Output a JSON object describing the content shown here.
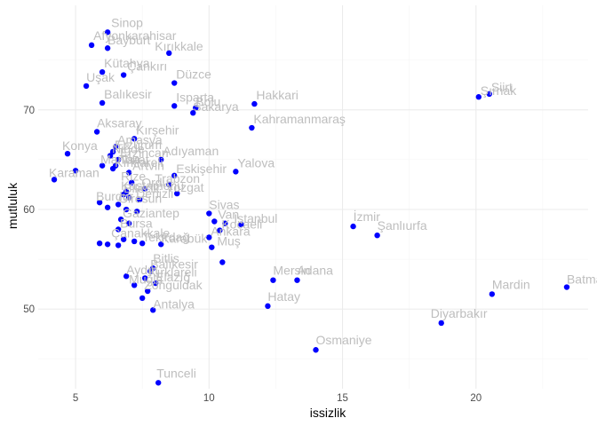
{
  "chart_data": {
    "type": "scatter",
    "title": "",
    "xlabel": "issizlik",
    "ylabel": "mutluluk",
    "xlim": [
      3.6,
      24.2
    ],
    "ylim": [
      42.0,
      80.5
    ],
    "x_ticks": [
      5,
      10,
      15,
      20
    ],
    "y_ticks": [
      50,
      60,
      70
    ],
    "x_minor": [
      7.5,
      12.5,
      17.5,
      22.5
    ],
    "y_minor": [
      45,
      55,
      65,
      75
    ],
    "grid": true,
    "legend": "none",
    "colors": {
      "point": "#0000ff",
      "label": "#bebebe",
      "grid": "#ebebeb"
    },
    "points": [
      {
        "label": "Sinop",
        "x": 6.2,
        "y": 77.8
      },
      {
        "label": "Afyonkarahisar",
        "x": 5.6,
        "y": 76.5
      },
      {
        "label": "Bayburt",
        "x": 6.2,
        "y": 76.2
      },
      {
        "label": "Kırıkkale",
        "x": 8.5,
        "y": 75.7
      },
      {
        "label": "Kütahya",
        "x": 6.0,
        "y": 73.8
      },
      {
        "label": "Çankırı",
        "x": 6.8,
        "y": 73.5
      },
      {
        "label": "Uşak",
        "x": 5.4,
        "y": 72.4
      },
      {
        "label": "Düzce",
        "x": 8.7,
        "y": 72.7
      },
      {
        "label": "Balıkesir",
        "x": 6.0,
        "y": 70.7
      },
      {
        "label": "Isparta",
        "x": 8.7,
        "y": 70.4
      },
      {
        "label": "Bolu",
        "x": 9.5,
        "y": 70.2
      },
      {
        "label": "Sakarya",
        "x": 9.4,
        "y": 69.7
      },
      {
        "label": "Hakkari",
        "x": 11.7,
        "y": 70.6
      },
      {
        "label": "Siirt",
        "x": 20.5,
        "y": 71.6
      },
      {
        "label": "Şırnak",
        "x": 20.1,
        "y": 71.3
      },
      {
        "label": "Kahramanmaraş",
        "x": 11.6,
        "y": 68.2
      },
      {
        "label": "Aksaray",
        "x": 5.8,
        "y": 67.8
      },
      {
        "label": "Kırşehir",
        "x": 7.2,
        "y": 67.1
      },
      {
        "label": "Amasya",
        "x": 6.5,
        "y": 66.3
      },
      {
        "label": "Erzurum",
        "x": 6.4,
        "y": 65.8
      },
      {
        "label": "Konya",
        "x": 4.7,
        "y": 65.6
      },
      {
        "label": "Niğde",
        "x": 6.3,
        "y": 65.4
      },
      {
        "label": "Erzincan",
        "x": 6.6,
        "y": 65.0
      },
      {
        "label": "Adıyaman",
        "x": 8.2,
        "y": 65.0
      },
      {
        "label": "Manisa",
        "x": 6.0,
        "y": 64.4
      },
      {
        "label": "Tokat",
        "x": 6.5,
        "y": 64.4
      },
      {
        "label": "Kırklareli",
        "x": 6.4,
        "y": 64.1
      },
      {
        "label": "Karaman",
        "x": 5.0,
        "y": 63.9
      },
      {
        "label": "Artvin",
        "x": 7.0,
        "y": 63.7
      },
      {
        "label": "Eskişehir",
        "x": 8.7,
        "y": 63.4
      },
      {
        "label": "Yalova",
        "x": 11.0,
        "y": 63.8
      },
      {
        "label": "Karaman2",
        "x": 4.2,
        "y": 63.0
      },
      {
        "label": "Rize",
        "x": 7.1,
        "y": 62.7
      },
      {
        "label": "Ordu",
        "x": 7.6,
        "y": 62.1
      },
      {
        "label": "Trabzon",
        "x": 8.5,
        "y": 62.5
      },
      {
        "label": "Kastamonu",
        "x": 6.9,
        "y": 61.8
      },
      {
        "label": "Yozgat",
        "x": 8.8,
        "y": 61.6
      },
      {
        "label": "Bilecik",
        "x": 6.8,
        "y": 61.5
      },
      {
        "label": "Sivas",
        "x": 7.0,
        "y": 61.2
      },
      {
        "label": "Denizli",
        "x": 7.4,
        "y": 61.0
      },
      {
        "label": "Burdur",
        "x": 5.9,
        "y": 60.7
      },
      {
        "label": "Giresun",
        "x": 6.6,
        "y": 60.5
      },
      {
        "label": "Çorum",
        "x": 6.2,
        "y": 60.2
      },
      {
        "label": "Karabük2",
        "x": 6.9,
        "y": 60.0
      },
      {
        "label": "Edirne",
        "x": 7.3,
        "y": 59.8
      },
      {
        "label": "Sivas2",
        "x": 10.0,
        "y": 59.6
      },
      {
        "label": "Van",
        "x": 10.2,
        "y": 58.8
      },
      {
        "label": "İstanbul",
        "x": 11.2,
        "y": 58.5
      },
      {
        "label": "Mersin2",
        "x": 10.6,
        "y": 58.6
      },
      {
        "label": "Gaziantep",
        "x": 6.7,
        "y": 59.0
      },
      {
        "label": "Antep2",
        "x": 7.0,
        "y": 58.6
      },
      {
        "label": "Bursa",
        "x": 6.6,
        "y": 58.0
      },
      {
        "label": "Kocaeli",
        "x": 10.4,
        "y": 57.9
      },
      {
        "label": "İzmir",
        "x": 15.4,
        "y": 58.3
      },
      {
        "label": "Şanlıurfa",
        "x": 16.3,
        "y": 57.4
      },
      {
        "label": "Ankara",
        "x": 10.0,
        "y": 57.2
      },
      {
        "label": "Çanakkale",
        "x": 6.8,
        "y": 57.0
      },
      {
        "label": "Kırıkkale2",
        "x": 7.2,
        "y": 56.8
      },
      {
        "label": "Tekirdağ",
        "x": 7.5,
        "y": 56.6
      },
      {
        "label": "Karabük",
        "x": 8.2,
        "y": 56.5
      },
      {
        "label": "Malatya",
        "x": 6.2,
        "y": 56.5
      },
      {
        "label": "Bartın",
        "x": 5.9,
        "y": 56.6
      },
      {
        "label": "Nevşehir",
        "x": 6.6,
        "y": 56.4
      },
      {
        "label": "Muş",
        "x": 10.1,
        "y": 56.2
      },
      {
        "label": "Osmaniye2",
        "x": 10.5,
        "y": 54.7
      },
      {
        "label": "Bitlis",
        "x": 7.9,
        "y": 54.1
      },
      {
        "label": "Balıkesir2",
        "x": 7.8,
        "y": 53.8
      },
      {
        "label": "Aydın",
        "x": 6.9,
        "y": 53.3
      },
      {
        "label": "Kırklareli2",
        "x": 7.6,
        "y": 53.1
      },
      {
        "label": "Mersin",
        "x": 12.4,
        "y": 52.9
      },
      {
        "label": "Adana",
        "x": 13.3,
        "y": 52.9
      },
      {
        "label": "Elazığ",
        "x": 8.0,
        "y": 52.6
      },
      {
        "label": "Muğla",
        "x": 7.2,
        "y": 52.4
      },
      {
        "label": "Zonguldak",
        "x": 7.7,
        "y": 51.8
      },
      {
        "label": "Mardin",
        "x": 20.6,
        "y": 51.5
      },
      {
        "label": "Batman",
        "x": 23.4,
        "y": 52.2
      },
      {
        "label": "Muğla2",
        "x": 7.5,
        "y": 51.1
      },
      {
        "label": "Hatay",
        "x": 12.2,
        "y": 50.3
      },
      {
        "label": "Antalya",
        "x": 7.9,
        "y": 49.9
      },
      {
        "label": "Diyarbakır",
        "x": 18.7,
        "y": 48.6
      },
      {
        "label": "Osmaniye",
        "x": 14.0,
        "y": 45.9
      },
      {
        "label": "Tunceli",
        "x": 8.1,
        "y": 42.6
      }
    ],
    "labels_shown": [
      {
        "text": "Sinop",
        "x": 6.2,
        "y": 77.8,
        "dx": 4,
        "dy": -6
      },
      {
        "text": "Afyonkarahisar",
        "x": 5.6,
        "y": 76.5,
        "dx": 2,
        "dy": -6
      },
      {
        "text": "Bayburt",
        "x": 6.2,
        "y": 76.2,
        "dx": 0,
        "dy": -4
      },
      {
        "text": "Kırıkkale",
        "x": 8.5,
        "y": 75.7,
        "dx": -16,
        "dy": -3
      },
      {
        "text": "Kütahya",
        "x": 6.0,
        "y": 73.8,
        "dx": 2,
        "dy": -5
      },
      {
        "text": "Çankırı",
        "x": 6.8,
        "y": 73.5,
        "dx": 4,
        "dy": -5
      },
      {
        "text": "Uşak",
        "x": 5.4,
        "y": 72.4,
        "dx": 0,
        "dy": -5
      },
      {
        "text": "Düzce",
        "x": 8.7,
        "y": 72.7,
        "dx": 2,
        "dy": -5
      },
      {
        "text": "Balıkesir",
        "x": 6.0,
        "y": 70.7,
        "dx": 2,
        "dy": -5
      },
      {
        "text": "Isparta",
        "x": 8.7,
        "y": 70.4,
        "dx": 2,
        "dy": -5
      },
      {
        "text": "Bolu",
        "x": 9.5,
        "y": 70.2,
        "dx": 0,
        "dy": -2
      },
      {
        "text": "Sakarya",
        "x": 9.4,
        "y": 69.7,
        "dx": 0,
        "dy": -2
      },
      {
        "text": "Hakkari",
        "x": 11.7,
        "y": 70.6,
        "dx": 2,
        "dy": -5
      },
      {
        "text": "Siirt",
        "x": 20.5,
        "y": 71.6,
        "dx": 2,
        "dy": -3
      },
      {
        "text": "Şırnak",
        "x": 20.1,
        "y": 71.3,
        "dx": 2,
        "dy": -2
      },
      {
        "text": "Kahramanmaraş",
        "x": 11.6,
        "y": 68.2,
        "dx": 2,
        "dy": -5
      },
      {
        "text": "Aksaray",
        "x": 5.8,
        "y": 67.8,
        "dx": 0,
        "dy": -5
      },
      {
        "text": "Kırşehir",
        "x": 7.2,
        "y": 67.1,
        "dx": 2,
        "dy": -5
      },
      {
        "text": "Amasya",
        "x": 6.5,
        "y": 66.3,
        "dx": 2,
        "dy": -3
      },
      {
        "text": "Erzurum",
        "x": 6.4,
        "y": 65.8,
        "dx": 2,
        "dy": -3
      },
      {
        "text": "Konya",
        "x": 4.7,
        "y": 65.6,
        "dx": -6,
        "dy": -4
      },
      {
        "text": "Niğde",
        "x": 6.3,
        "y": 65.4,
        "dx": 2,
        "dy": -3
      },
      {
        "text": "Erzincan",
        "x": 6.6,
        "y": 65.0,
        "dx": 2,
        "dy": -3
      },
      {
        "text": "Adıyaman",
        "x": 8.2,
        "y": 65.0,
        "dx": 2,
        "dy": -5
      },
      {
        "text": "Manisa",
        "x": 6.0,
        "y": 64.4,
        "dx": -2,
        "dy": -2
      },
      {
        "text": "Tokat",
        "x": 6.5,
        "y": 64.4,
        "dx": 4,
        "dy": -2
      },
      {
        "text": "Kırklareli",
        "x": 6.4,
        "y": 64.1,
        "dx": 2,
        "dy": -2
      },
      {
        "text": "Karaman",
        "x": 4.2,
        "y": 63.0,
        "dx": -6,
        "dy": -3
      },
      {
        "text": "Artvin",
        "x": 7.0,
        "y": 63.7,
        "dx": 4,
        "dy": -3
      },
      {
        "text": "Eskişehir",
        "x": 8.7,
        "y": 63.4,
        "dx": 2,
        "dy": -3
      },
      {
        "text": "Yalova",
        "x": 11.0,
        "y": 63.8,
        "dx": 2,
        "dy": -5
      },
      {
        "text": "Rize",
        "x": 7.1,
        "y": 62.7,
        "dx": -12,
        "dy": -2
      },
      {
        "text": "Ordu",
        "x": 7.6,
        "y": 62.1,
        "dx": -4,
        "dy": -2
      },
      {
        "text": "Trabzon",
        "x": 8.5,
        "y": 62.5,
        "dx": -16,
        "dy": -2
      },
      {
        "text": "Kastamonu",
        "x": 6.9,
        "y": 61.8,
        "dx": -6,
        "dy": -2
      },
      {
        "text": "Yozgat",
        "x": 8.8,
        "y": 61.6,
        "dx": -12,
        "dy": -2
      },
      {
        "text": "Bilecik",
        "x": 6.8,
        "y": 61.5,
        "dx": 0,
        "dy": -2
      },
      {
        "text": "Denizli",
        "x": 7.4,
        "y": 61.0,
        "dx": -4,
        "dy": -2
      },
      {
        "text": "Burdur",
        "x": 5.9,
        "y": 60.7,
        "dx": -4,
        "dy": -2
      },
      {
        "text": "Giresun",
        "x": 6.6,
        "y": 60.5,
        "dx": 0,
        "dy": -2
      },
      {
        "text": "Sivas",
        "x": 10.0,
        "y": 59.6,
        "dx": 0,
        "dy": -5
      },
      {
        "text": "Van",
        "x": 10.2,
        "y": 58.8,
        "dx": 4,
        "dy": -3
      },
      {
        "text": "İstanbul",
        "x": 11.2,
        "y": 58.5,
        "dx": -8,
        "dy": -2
      },
      {
        "text": "Gaziantep",
        "x": 6.7,
        "y": 59.0,
        "dx": 2,
        "dy": -2
      },
      {
        "text": "Bursa",
        "x": 6.6,
        "y": 58.0,
        "dx": 2,
        "dy": -2
      },
      {
        "text": "Kocaeli",
        "x": 10.4,
        "y": 57.9,
        "dx": 2,
        "dy": -2
      },
      {
        "text": "İzmir",
        "x": 15.4,
        "y": 58.3,
        "dx": 0,
        "dy": -6
      },
      {
        "text": "Şanlıurfa",
        "x": 16.3,
        "y": 57.4,
        "dx": 0,
        "dy": -6
      },
      {
        "text": "Ankara",
        "x": 10.0,
        "y": 57.2,
        "dx": 2,
        "dy": -2
      },
      {
        "text": "Çanakkale",
        "x": 6.8,
        "y": 57.0,
        "dx": -14,
        "dy": -2
      },
      {
        "text": "Tekirdağ",
        "x": 7.5,
        "y": 56.6,
        "dx": 0,
        "dy": -2
      },
      {
        "text": "Karabük",
        "x": 8.2,
        "y": 56.5,
        "dx": 0,
        "dy": -2
      },
      {
        "text": "Muş",
        "x": 10.1,
        "y": 56.2,
        "dx": 6,
        "dy": -2
      },
      {
        "text": "Bitlis",
        "x": 7.9,
        "y": 54.1,
        "dx": 0,
        "dy": -6
      },
      {
        "text": "Balıkesir",
        "x": 7.8,
        "y": 53.8,
        "dx": 0,
        "dy": -3
      },
      {
        "text": "Aydın",
        "x": 6.9,
        "y": 53.3,
        "dx": 0,
        "dy": -2
      },
      {
        "text": "Kırklareli",
        "x": 7.6,
        "y": 53.1,
        "dx": 4,
        "dy": -2
      },
      {
        "text": "Mersin",
        "x": 12.4,
        "y": 52.9,
        "dx": 0,
        "dy": -6
      },
      {
        "text": "Adana",
        "x": 13.3,
        "y": 52.9,
        "dx": 0,
        "dy": -6
      },
      {
        "text": "Elazığ",
        "x": 8.0,
        "y": 52.6,
        "dx": 0,
        "dy": -2
      },
      {
        "text": "Muğla",
        "x": 7.2,
        "y": 52.4,
        "dx": -6,
        "dy": -2
      },
      {
        "text": "Zonguldak",
        "x": 7.7,
        "y": 51.8,
        "dx": -4,
        "dy": -2
      },
      {
        "text": "Mardin",
        "x": 20.6,
        "y": 51.5,
        "dx": 0,
        "dy": -6
      },
      {
        "text": "Batman",
        "x": 23.4,
        "y": 52.2,
        "dx": 0,
        "dy": -4
      },
      {
        "text": "Hatay",
        "x": 12.2,
        "y": 50.3,
        "dx": 0,
        "dy": -6
      },
      {
        "text": "Antalya",
        "x": 7.9,
        "y": 49.9,
        "dx": 0,
        "dy": -2
      },
      {
        "text": "Diyarbakır",
        "x": 18.7,
        "y": 48.6,
        "dx": -12,
        "dy": -6
      },
      {
        "text": "Osmaniye",
        "x": 14.0,
        "y": 45.9,
        "dx": 0,
        "dy": -6
      },
      {
        "text": "Tunceli",
        "x": 8.1,
        "y": 42.6,
        "dx": -2,
        "dy": -6
      }
    ]
  }
}
